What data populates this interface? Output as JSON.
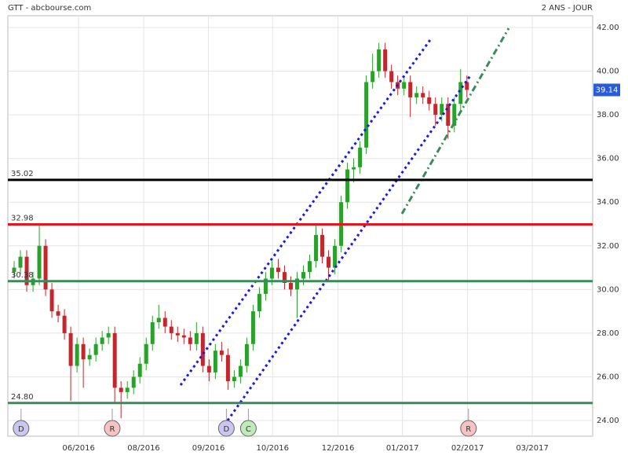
{
  "chart_data": {
    "type": "candlestick",
    "title": "GTT - abcbourse.com",
    "subtitle": "2 ANS - JOUR",
    "x": [
      1,
      2,
      3,
      4,
      5,
      6,
      7,
      8,
      9,
      10,
      11,
      12,
      13,
      14,
      15,
      16,
      17,
      18,
      19,
      20,
      21,
      22,
      23,
      24,
      25,
      26,
      27,
      28,
      29,
      30,
      31,
      32,
      33,
      34,
      35,
      36,
      37,
      38,
      39,
      40,
      41,
      42,
      43,
      44,
      45,
      46,
      47,
      48,
      49,
      50,
      51,
      52,
      53,
      54,
      55,
      56,
      57,
      58,
      59,
      60,
      61,
      62,
      63,
      64,
      65,
      66,
      67,
      68,
      69,
      70,
      71,
      72,
      73
    ],
    "open": [
      30.8,
      31,
      31.5,
      30.2,
      30.5,
      32,
      30,
      29,
      28.8,
      28,
      26.5,
      27.5,
      26.8,
      27,
      27.5,
      27.8,
      28,
      25.5,
      25.3,
      25.5,
      26,
      26.6,
      27.5,
      28.5,
      28.7,
      28.3,
      28,
      27.9,
      27.8,
      27.5,
      28,
      26.5,
      26.2,
      27.2,
      27,
      25.8,
      26,
      26.5,
      27.5,
      29,
      29.8,
      30.5,
      31,
      30.8,
      30.3,
      30,
      30.5,
      30.8,
      31.3,
      32.5,
      31.5,
      31,
      32,
      34,
      35.5,
      35.6,
      36.5,
      39.5,
      40,
      41,
      40,
      39.5,
      39.2,
      39.5,
      38.8,
      39,
      38.8,
      38.5,
      38,
      38.5,
      37.5,
      38.5,
      39.5
    ],
    "high": [
      31.3,
      31.8,
      31.8,
      30.8,
      33,
      32.3,
      30.3,
      29.3,
      29.1,
      28.3,
      27.8,
      27.8,
      27.3,
      27.8,
      28.1,
      28.3,
      28.3,
      25.8,
      25.8,
      26.3,
      26.9,
      27.8,
      28.8,
      29.3,
      29,
      28.6,
      28.3,
      28.2,
      28.1,
      28.5,
      28.3,
      26.8,
      27.5,
      27.6,
      27.3,
      26.3,
      26.8,
      27.8,
      29.3,
      30.1,
      30.8,
      31.3,
      31.4,
      31.1,
      30.6,
      30.8,
      31.1,
      31.6,
      33,
      32.8,
      31.8,
      32.3,
      34.3,
      35.8,
      36,
      36.8,
      39.8,
      40.8,
      41.3,
      41.3,
      40.3,
      39.8,
      39.8,
      39.8,
      39.3,
      39.3,
      39.1,
      38.8,
      38.8,
      38.8,
      38.8,
      40.1,
      39.8
    ],
    "low": [
      30.5,
      30.7,
      29.9,
      29.9,
      30.2,
      29.7,
      28.7,
      28.5,
      27.7,
      24.9,
      26.2,
      25.5,
      26.5,
      26.7,
      27.2,
      27.5,
      24.8,
      24.1,
      25,
      25.2,
      25.7,
      26.3,
      27.2,
      28.2,
      28,
      27.7,
      27.6,
      27.5,
      27.2,
      27.2,
      26.2,
      25.8,
      25.9,
      26.7,
      25.4,
      25.5,
      25.7,
      26.2,
      27.2,
      28.7,
      29.5,
      30.2,
      30.5,
      30,
      29.7,
      28.7,
      30.2,
      30.5,
      31,
      31.2,
      30.4,
      30.7,
      31.7,
      33.7,
      34.9,
      35.3,
      36.2,
      39.2,
      39.7,
      39.7,
      39.2,
      38.9,
      38.9,
      37.9,
      38.5,
      38.5,
      38.2,
      37.5,
      37.7,
      36.9,
      37.2,
      38.2,
      38.8
    ],
    "close": [
      31,
      31.5,
      30.2,
      30.5,
      32,
      30,
      29,
      28.8,
      28,
      26.5,
      27.5,
      26.8,
      27,
      27.5,
      27.8,
      28,
      25.5,
      25.3,
      25.5,
      26,
      26.6,
      27.5,
      28.5,
      28.7,
      28.3,
      28,
      27.9,
      27.8,
      27.5,
      28,
      26.5,
      26.2,
      27.2,
      27,
      25.8,
      26,
      26.5,
      27.5,
      29,
      29.8,
      30.5,
      31,
      30.8,
      30.3,
      30,
      30.5,
      30.8,
      31.3,
      32.5,
      31.5,
      31,
      32,
      34,
      35.5,
      35.6,
      36.5,
      39.5,
      40,
      41,
      40,
      39.5,
      39.2,
      39.5,
      38.8,
      39,
      38.8,
      38.5,
      38,
      38.5,
      37.5,
      38.5,
      39.5,
      39.14
    ],
    "up_color": "#2ca02c",
    "down_color": "#c0282d",
    "xlim": [
      0,
      93
    ],
    "xticks": [
      {
        "value": 11.25,
        "label": "06/2016"
      },
      {
        "value": 21.6,
        "label": "08/2016"
      },
      {
        "value": 31.9,
        "label": "09/2016"
      },
      {
        "value": 42.1,
        "label": "10/2016"
      },
      {
        "value": 52.5,
        "label": "12/2016"
      },
      {
        "value": 62.75,
        "label": "01/2017"
      },
      {
        "value": 73.1,
        "label": "02/2017"
      },
      {
        "value": 83.4,
        "label": "03/2017"
      }
    ],
    "ylim": [
      23.28,
      42.54
    ],
    "yticks": [
      {
        "value": 24,
        "label": "24.00"
      },
      {
        "value": 26,
        "label": "26.00"
      },
      {
        "value": 28,
        "label": "28.00"
      },
      {
        "value": 30,
        "label": "30.00"
      },
      {
        "value": 32,
        "label": "32.00"
      },
      {
        "value": 34,
        "label": "34.00"
      },
      {
        "value": 36,
        "label": "36.00"
      },
      {
        "value": 38,
        "label": "38.00"
      },
      {
        "value": 40,
        "label": "40.00"
      },
      {
        "value": 42,
        "label": "42.00"
      }
    ],
    "grid": true,
    "levels": [
      {
        "value": 35.02,
        "label": "35.02",
        "color": "#000000"
      },
      {
        "value": 32.98,
        "label": "32.98",
        "color": "#e8141c"
      },
      {
        "value": 30.38,
        "label": "30.38",
        "color": "#3a8a5c"
      },
      {
        "value": 24.8,
        "label": "24.80",
        "color": "#3a8a5c"
      }
    ],
    "last": 39.14,
    "events": [
      {
        "x": 2.1,
        "label": "D",
        "color": "#c9c6f0"
      },
      {
        "x": 16.6,
        "label": "R",
        "color": "#f6c3c3"
      },
      {
        "x": 34.75,
        "label": "D",
        "color": "#c9c6f0"
      },
      {
        "x": 38.25,
        "label": "C",
        "color": "#bfeab9"
      },
      {
        "x": 73.25,
        "label": "R",
        "color": "#f6c3c3"
      }
    ]
  }
}
